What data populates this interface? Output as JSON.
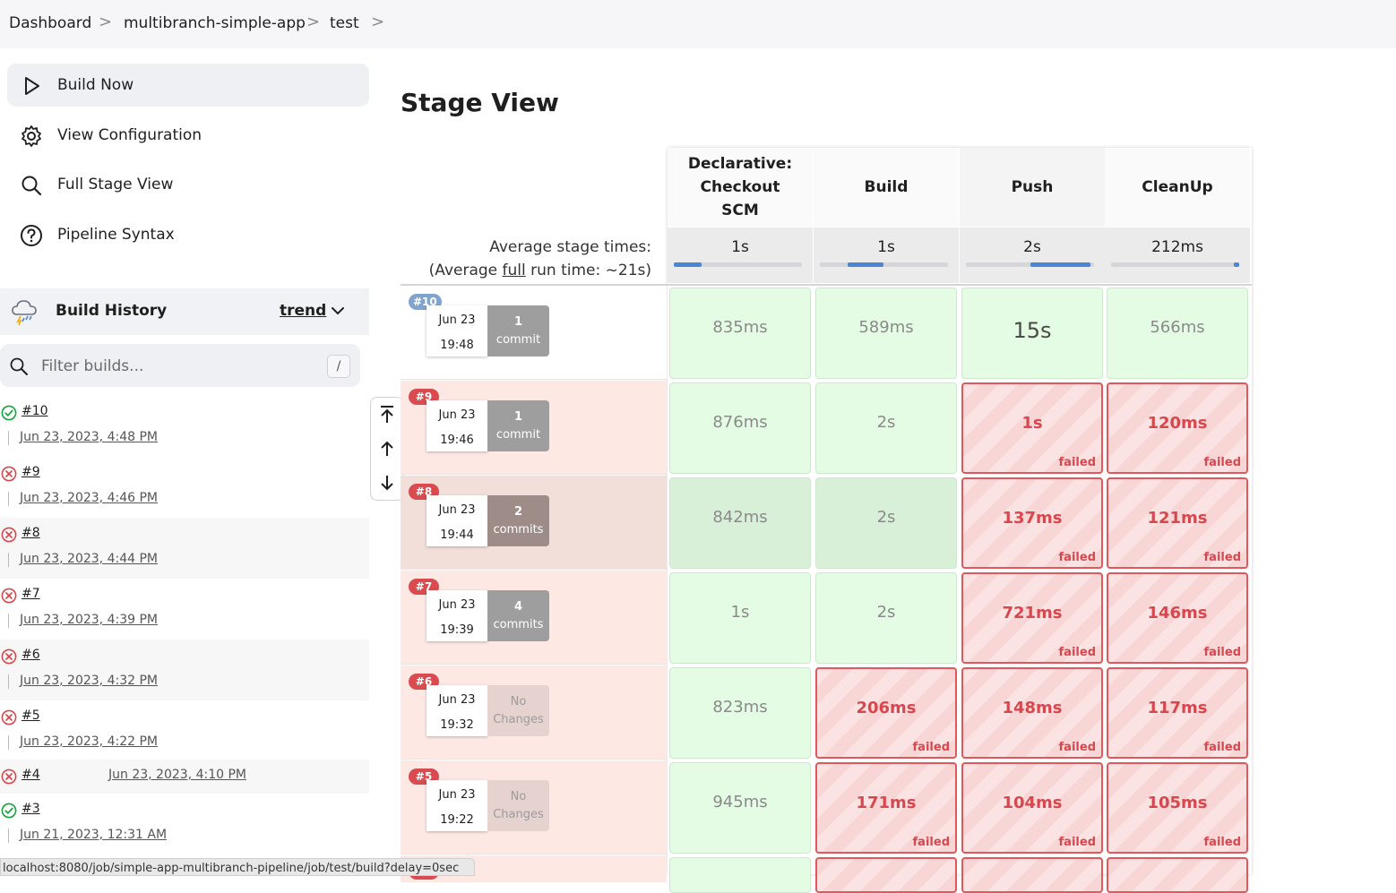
{
  "breadcrumb": {
    "items": [
      "Dashboard",
      "multibranch-simple-app",
      "test"
    ],
    "separator": ">"
  },
  "tasks": [
    {
      "label": "Build Now",
      "icon": "play-icon"
    },
    {
      "label": "View Configuration",
      "icon": "gear-icon"
    },
    {
      "label": "Full Stage View",
      "icon": "search-icon"
    },
    {
      "label": "Pipeline Syntax",
      "icon": "help-icon"
    }
  ],
  "build_history": {
    "title": "Build History",
    "trend_label": "trend",
    "filter_placeholder": "Filter builds...",
    "filter_shortcut": "/",
    "builds": [
      {
        "number": "#10",
        "date": "Jun 23, 2023, 4:48 PM",
        "status": "success"
      },
      {
        "number": "#9",
        "date": "Jun 23, 2023, 4:46 PM",
        "status": "failed"
      },
      {
        "number": "#8",
        "date": "Jun 23, 2023, 4:44 PM",
        "status": "failed"
      },
      {
        "number": "#7",
        "date": "Jun 23, 2023, 4:39 PM",
        "status": "failed"
      },
      {
        "number": "#6",
        "date": "Jun 23, 2023, 4:32 PM",
        "status": "failed"
      },
      {
        "number": "#5",
        "date": "Jun 23, 2023, 4:22 PM",
        "status": "failed"
      },
      {
        "number": "#4",
        "date": "Jun 23, 2023, 4:10 PM",
        "status": "failed"
      },
      {
        "number": "#3",
        "date": "Jun 21, 2023, 12:31 AM",
        "status": "success"
      }
    ]
  },
  "stage_view": {
    "title": "Stage View",
    "average_label": "Average stage times:",
    "run_time_prefix": "(Average ",
    "run_time_link": "full",
    "run_time_suffix": " run time: ~21s)",
    "stages": [
      {
        "name": "Declarative: Checkout SCM",
        "avg": "1s",
        "progress_start": 0.0,
        "progress_end": 0.22
      },
      {
        "name": "Build",
        "avg": "1s",
        "progress_start": 0.22,
        "progress_end": 0.5
      },
      {
        "name": "Push",
        "avg": "2s",
        "progress_start": 0.5,
        "progress_end": 0.97
      },
      {
        "name": "CleanUp",
        "avg": "212ms",
        "progress_start": 0.96,
        "progress_end": 1.0
      }
    ],
    "failed_label": "failed",
    "runs": [
      {
        "badge": "#10",
        "status": "success",
        "date": "Jun 23",
        "time": "19:48",
        "commit_count": "1",
        "commit_word": "commit",
        "cells": [
          {
            "v": "835ms",
            "s": "ok"
          },
          {
            "v": "589ms",
            "s": "ok"
          },
          {
            "v": "15s",
            "s": "ok"
          },
          {
            "v": "566ms",
            "s": "ok"
          }
        ]
      },
      {
        "badge": "#9",
        "status": "failed",
        "date": "Jun 23",
        "time": "19:46",
        "commit_count": "1",
        "commit_word": "commit",
        "cells": [
          {
            "v": "876ms",
            "s": "ok"
          },
          {
            "v": "2s",
            "s": "ok"
          },
          {
            "v": "1s",
            "s": "fail"
          },
          {
            "v": "120ms",
            "s": "fail"
          }
        ]
      },
      {
        "badge": "#8",
        "status": "failed",
        "date": "Jun 23",
        "time": "19:44",
        "commit_count": "2",
        "commit_word": "commits",
        "cells": [
          {
            "v": "842ms",
            "s": "ok"
          },
          {
            "v": "2s",
            "s": "ok"
          },
          {
            "v": "137ms",
            "s": "fail"
          },
          {
            "v": "121ms",
            "s": "fail"
          }
        ]
      },
      {
        "badge": "#7",
        "status": "failed",
        "date": "Jun 23",
        "time": "19:39",
        "commit_count": "4",
        "commit_word": "commits",
        "cells": [
          {
            "v": "1s",
            "s": "ok"
          },
          {
            "v": "2s",
            "s": "ok"
          },
          {
            "v": "721ms",
            "s": "fail"
          },
          {
            "v": "146ms",
            "s": "fail"
          }
        ]
      },
      {
        "badge": "#6",
        "status": "failed",
        "date": "Jun 23",
        "time": "19:32",
        "commit_count": "No",
        "commit_word": "Changes",
        "cells": [
          {
            "v": "823ms",
            "s": "ok"
          },
          {
            "v": "206ms",
            "s": "fail"
          },
          {
            "v": "148ms",
            "s": "fail"
          },
          {
            "v": "117ms",
            "s": "fail"
          }
        ]
      },
      {
        "badge": "#5",
        "status": "failed",
        "date": "Jun 23",
        "time": "19:22",
        "commit_count": "No",
        "commit_word": "Changes",
        "cells": [
          {
            "v": "945ms",
            "s": "ok"
          },
          {
            "v": "171ms",
            "s": "fail"
          },
          {
            "v": "104ms",
            "s": "fail"
          },
          {
            "v": "105ms",
            "s": "fail"
          }
        ]
      }
    ]
  },
  "status_bar": {
    "url": "localhost:8080/job/simple-app-multibranch-pipeline/job/test/build?delay=0sec"
  },
  "colors": {
    "success": "#14a33c",
    "failed": "#d7474e",
    "badge_success": "#7fa4d0",
    "badge_failed": "#d94b4f",
    "progress": "#4a86d3"
  }
}
